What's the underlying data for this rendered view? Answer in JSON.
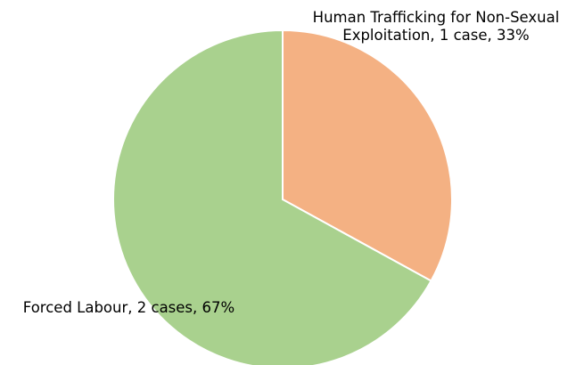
{
  "chart_data": {
    "type": "pie",
    "values": [
      33,
      67
    ],
    "value_labels": [
      "Human Trafficking for Non-Sexual Exploitation, 1 case, 33%",
      "Forced Labour, 2 cases, 67%"
    ],
    "colors": [
      "#f4b183",
      "#a9d18e"
    ]
  }
}
